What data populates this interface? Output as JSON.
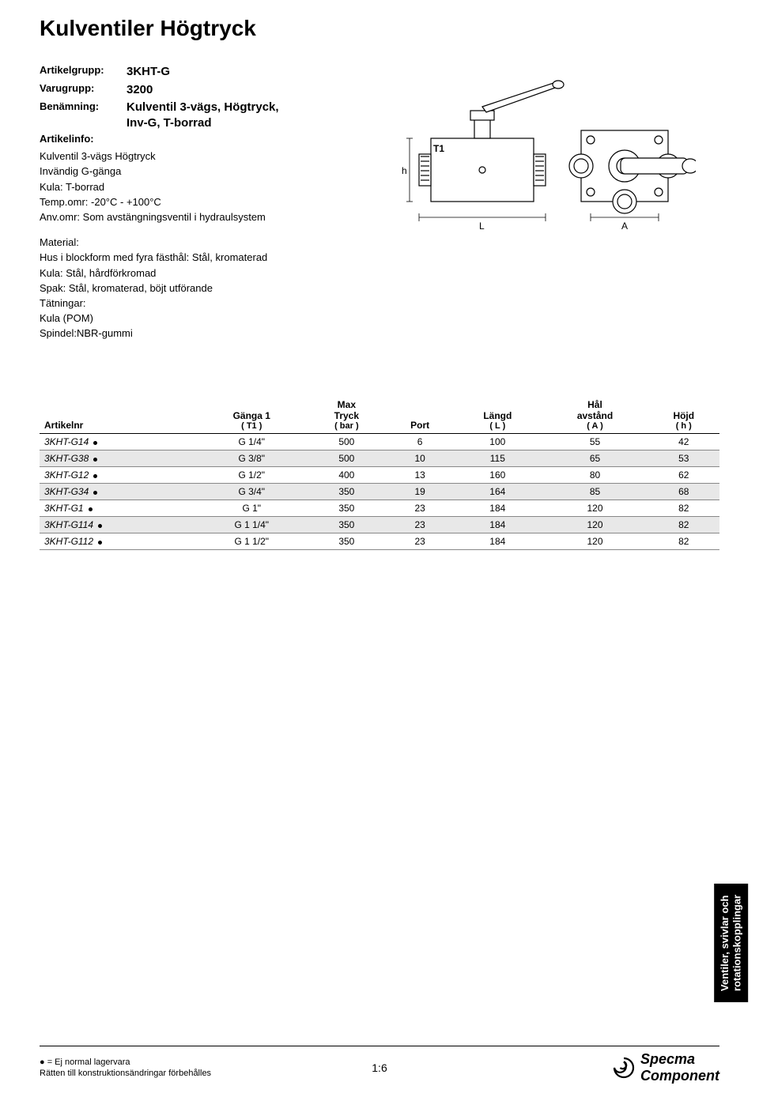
{
  "title": "Kulventiler Högtryck",
  "info": {
    "artikelgrupp_label": "Artikelgrupp:",
    "artikelgrupp_value": "3KHT-G",
    "varugrupp_label": "Varugrupp:",
    "varugrupp_value": "3200",
    "benamning_label": "Benämning:",
    "benamning_value_l1": "Kulventil 3-vägs, Högtryck,",
    "benamning_value_l2": "Inv-G, T-borrad",
    "artikelinfo_label": "Artikelinfo:",
    "lines": [
      "Kulventil 3-vägs Högtryck",
      "Invändig G-gänga",
      "Kula: T-borrad",
      "Temp.omr: -20°C - +100°C",
      "Anv.omr: Som avstängningsventil i hydraulsystem"
    ],
    "material_label": "Material:",
    "material_lines": [
      "Hus i blockform med fyra fästhål: Stål, kromaterad",
      "Kula: Stål, hårdförkromad",
      "Spak: Stål, kromaterad, böjt utförande",
      "Tätningar:",
      "Kula (POM)",
      "Spindel:NBR-gummi"
    ]
  },
  "diagram": {
    "labels": {
      "h": "h",
      "T1": "T1",
      "L": "L",
      "A": "A"
    },
    "stroke": "#000000",
    "fill": "#ffffff"
  },
  "table": {
    "columns": [
      {
        "main": "Artikelnr",
        "sub": ""
      },
      {
        "main": "Gänga 1",
        "sub": "( T1 )"
      },
      {
        "main": "Max\nTryck",
        "sub": "( bar )"
      },
      {
        "main": "Port",
        "sub": ""
      },
      {
        "main": "Längd",
        "sub": "( L )"
      },
      {
        "main": "Hål\navstånd",
        "sub": "( A )"
      },
      {
        "main": "Höjd",
        "sub": "( h )"
      }
    ],
    "rows": [
      {
        "alt": false,
        "cells": [
          "3KHT-G14",
          "G 1/4\"",
          "500",
          "6",
          "100",
          "55",
          "42"
        ]
      },
      {
        "alt": true,
        "cells": [
          "3KHT-G38",
          "G 3/8\"",
          "500",
          "10",
          "115",
          "65",
          "53"
        ]
      },
      {
        "alt": false,
        "cells": [
          "3KHT-G12",
          "G 1/2\"",
          "400",
          "13",
          "160",
          "80",
          "62"
        ]
      },
      {
        "alt": true,
        "cells": [
          "3KHT-G34",
          "G 3/4\"",
          "350",
          "19",
          "164",
          "85",
          "68"
        ]
      },
      {
        "alt": false,
        "cells": [
          "3KHT-G1",
          "G 1\"",
          "350",
          "23",
          "184",
          "120",
          "82"
        ]
      },
      {
        "alt": true,
        "cells": [
          "3KHT-G114",
          "G 1 1/4\"",
          "350",
          "23",
          "184",
          "120",
          "82"
        ]
      },
      {
        "alt": false,
        "cells": [
          "3KHT-G112",
          "G 1 1/2\"",
          "350",
          "23",
          "184",
          "120",
          "82"
        ]
      }
    ]
  },
  "side_tab_l1": "Ventiler, svivlar och",
  "side_tab_l2": "rotationskopplingar",
  "footer": {
    "left_l1": "● = Ej normal lagervara",
    "left_l2": "Rätten till konstruktionsändringar förbehålles",
    "center": "1:6",
    "logo_l1": "Specma",
    "logo_l2": "Component"
  },
  "colors": {
    "alt_row": "#e8e8e8",
    "text": "#000000",
    "bg": "#ffffff"
  }
}
